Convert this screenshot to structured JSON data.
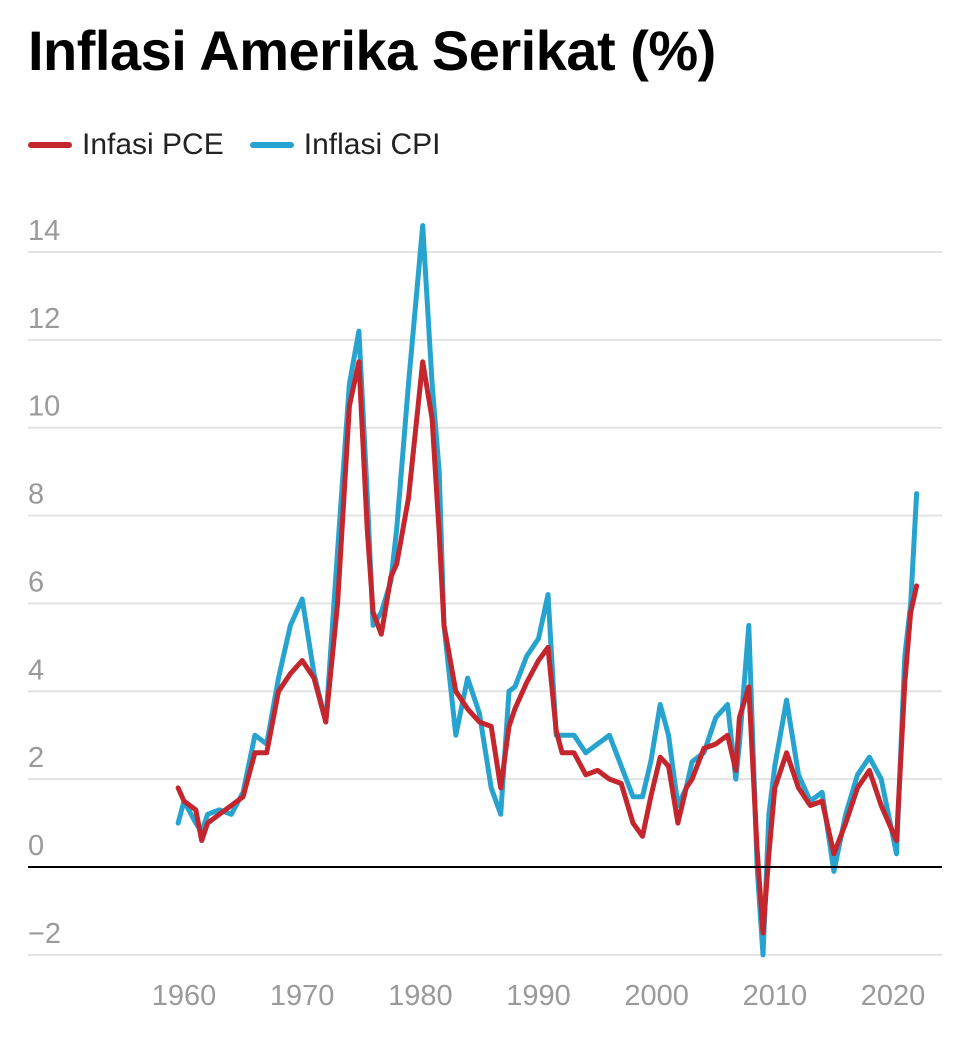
{
  "chart_data": {
    "type": "line",
    "title": "Inflasi Amerika Serikat (%)",
    "xlabel": "",
    "ylabel": "",
    "xlim": [
      1948,
      2023
    ],
    "ylim": [
      -2.5,
      15
    ],
    "x_ticks": [
      1960,
      1970,
      1980,
      1990,
      2000,
      2010,
      2020
    ],
    "y_ticks": [
      -2,
      0,
      2,
      4,
      6,
      8,
      10,
      12,
      14
    ],
    "y_tick_labels": [
      "−2",
      "0",
      "2",
      "4",
      "6",
      "8",
      "10",
      "12",
      "14"
    ],
    "grid": "horizontal",
    "legend_position": "top-left",
    "colors": {
      "pce": "#c4262e",
      "cpi": "#27a3cf",
      "zero_line": "#000000",
      "grid": "#e3e3e3"
    },
    "series": [
      {
        "name": "Infasi PCE",
        "color": "#c4262e",
        "x": [
          1959.5,
          1960,
          1961,
          1961.5,
          1962,
          1963,
          1964,
          1965,
          1966,
          1967,
          1968,
          1969,
          1970,
          1971,
          1972,
          1973,
          1974,
          1974.8,
          1975.5,
          1976,
          1976.7,
          1977.5,
          1978,
          1979,
          1980.2,
          1981,
          1981.6,
          1982,
          1983,
          1984,
          1985,
          1986,
          1986.8,
          1987.5,
          1988,
          1989,
          1990,
          1990.8,
          1991.5,
          1992,
          1993,
          1994,
          1995,
          1996,
          1997,
          1998,
          1998.8,
          1999.5,
          2000.3,
          2001,
          2001.8,
          2002.5,
          2003,
          2004,
          2005,
          2006,
          2006.7,
          2007,
          2007.8,
          2008.5,
          2009,
          2009.5,
          2010,
          2011,
          2012,
          2013,
          2014,
          2015,
          2016,
          2017,
          2018,
          2019,
          2020.3,
          2021,
          2021.5,
          2022
        ],
        "y": [
          1.8,
          1.5,
          1.3,
          0.6,
          1.0,
          1.2,
          1.4,
          1.6,
          2.6,
          2.6,
          4.0,
          4.4,
          4.7,
          4.3,
          3.3,
          6.0,
          10.5,
          11.5,
          7.7,
          5.8,
          5.3,
          6.6,
          6.9,
          8.4,
          11.5,
          10.2,
          7.6,
          5.5,
          4.0,
          3.6,
          3.3,
          3.2,
          1.8,
          3.2,
          3.6,
          4.2,
          4.7,
          5.0,
          3.1,
          2.6,
          2.6,
          2.1,
          2.2,
          2.0,
          1.9,
          1.0,
          0.7,
          1.6,
          2.5,
          2.3,
          1.0,
          1.8,
          2.0,
          2.7,
          2.8,
          3.0,
          2.2,
          3.4,
          4.1,
          0.4,
          -1.5,
          0.3,
          1.8,
          2.6,
          1.8,
          1.4,
          1.5,
          0.3,
          1.0,
          1.8,
          2.2,
          1.4,
          0.6,
          4.2,
          5.8,
          6.4
        ]
      },
      {
        "name": "Inflasi CPI",
        "color": "#27a3cf",
        "x": [
          1959.5,
          1960,
          1961,
          1961.5,
          1962,
          1963,
          1964,
          1965,
          1966,
          1967,
          1968,
          1969,
          1970,
          1971,
          1972,
          1973,
          1974,
          1974.8,
          1975.5,
          1976,
          1976.7,
          1977.5,
          1978,
          1979,
          1980.2,
          1981,
          1981.6,
          1982,
          1983,
          1984,
          1985,
          1986,
          1986.8,
          1987.5,
          1988,
          1989,
          1990,
          1990.8,
          1991.5,
          1992,
          1993,
          1994,
          1995,
          1996,
          1997,
          1998,
          1998.8,
          1999.5,
          2000.3,
          2001,
          2001.8,
          2002.5,
          2003,
          2004,
          2005,
          2006,
          2006.7,
          2007,
          2007.8,
          2008.5,
          2009,
          2009.5,
          2010,
          2011,
          2012,
          2013,
          2014,
          2015,
          2016,
          2017,
          2018,
          2019,
          2020.3,
          2021,
          2021.5,
          2022
        ],
        "y": [
          1.0,
          1.5,
          1.0,
          0.8,
          1.2,
          1.3,
          1.2,
          1.7,
          3.0,
          2.8,
          4.3,
          5.5,
          6.1,
          4.4,
          3.3,
          7.2,
          11.0,
          12.2,
          8.5,
          5.5,
          5.8,
          6.5,
          7.7,
          11.0,
          14.6,
          11.0,
          9.0,
          5.5,
          3.0,
          4.3,
          3.5,
          1.8,
          1.2,
          4.0,
          4.1,
          4.8,
          5.2,
          6.2,
          3.0,
          3.0,
          3.0,
          2.6,
          2.8,
          3.0,
          2.3,
          1.6,
          1.6,
          2.4,
          3.7,
          3.0,
          1.4,
          1.8,
          2.4,
          2.6,
          3.4,
          3.7,
          2.0,
          2.8,
          5.5,
          0.0,
          -2.0,
          1.2,
          2.3,
          3.8,
          2.1,
          1.5,
          1.7,
          -0.1,
          1.2,
          2.1,
          2.5,
          2.0,
          0.3,
          4.8,
          6.0,
          8.5
        ]
      }
    ]
  }
}
